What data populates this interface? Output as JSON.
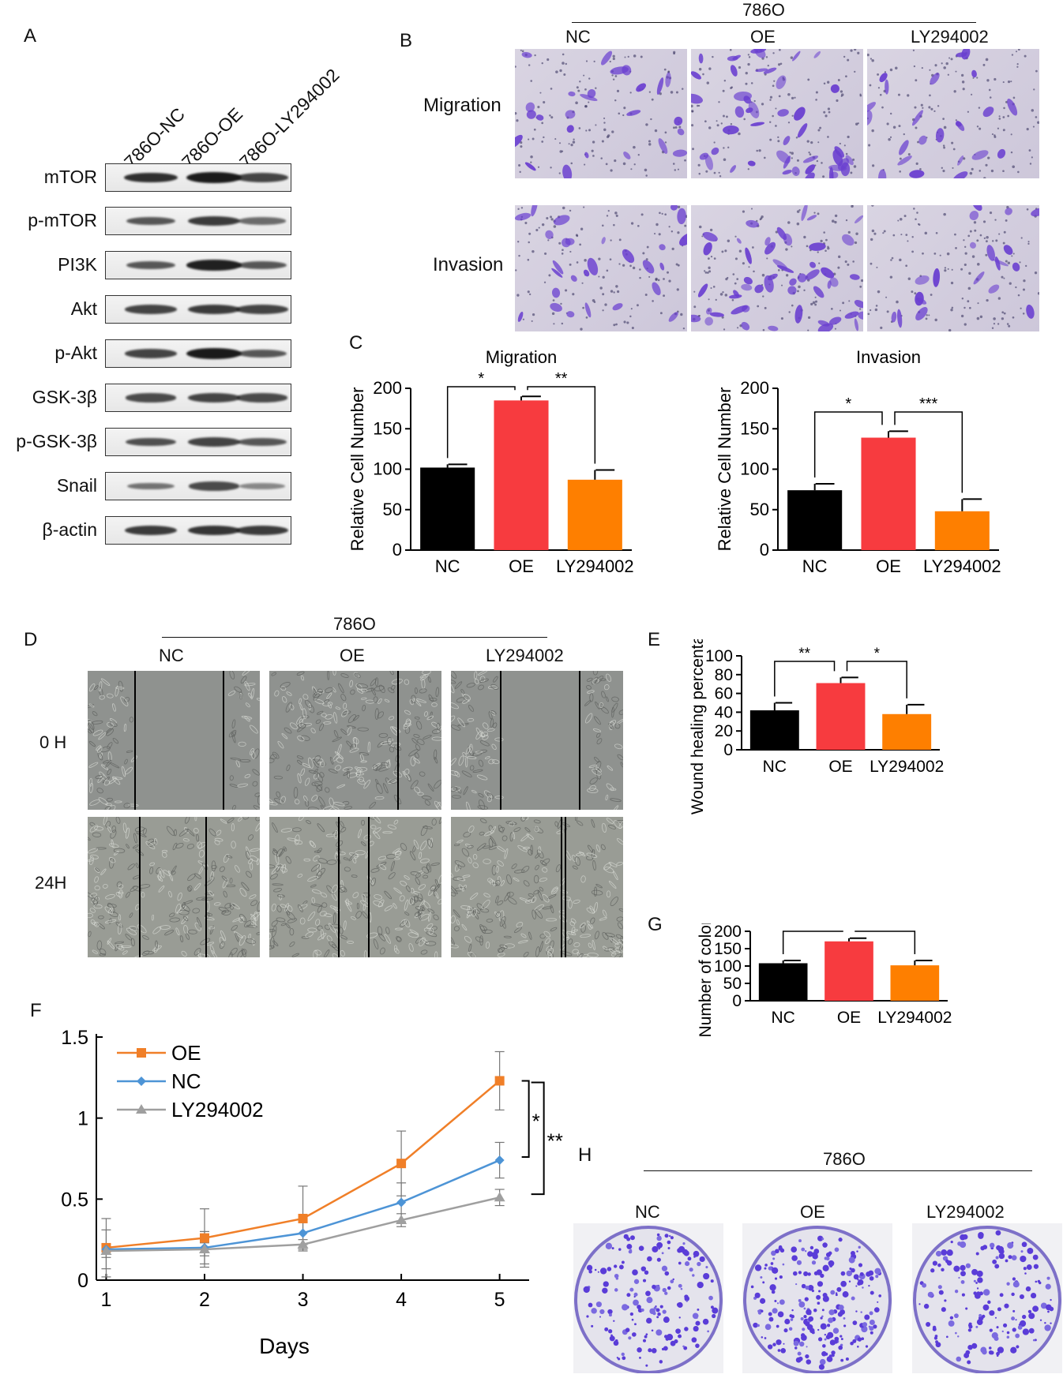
{
  "panel_letters": {
    "A": "A",
    "B": "B",
    "C": "C",
    "D": "D",
    "E": "E",
    "F": "F",
    "G": "G",
    "H": "H"
  },
  "panelA": {
    "lanes": [
      "786O-NC",
      "786O-OE",
      "786O-LY294002"
    ],
    "proteins": [
      {
        "label": "mTOR",
        "intensity": [
          0.85,
          1.0,
          0.7
        ]
      },
      {
        "label": "p-mTOR",
        "intensity": [
          0.55,
          0.75,
          0.4
        ]
      },
      {
        "label": "PI3K",
        "intensity": [
          0.55,
          0.95,
          0.55
        ]
      },
      {
        "label": "Akt",
        "intensity": [
          0.7,
          0.75,
          0.7
        ]
      },
      {
        "label": "p-Akt",
        "intensity": [
          0.7,
          1.0,
          0.55
        ]
      },
      {
        "label": "GSK-3β",
        "intensity": [
          0.65,
          0.7,
          0.65
        ]
      },
      {
        "label": "p-GSK-3β",
        "intensity": [
          0.6,
          0.7,
          0.55
        ]
      },
      {
        "label": "Snail",
        "intensity": [
          0.35,
          0.65,
          0.2
        ]
      },
      {
        "label": "β-actin",
        "intensity": [
          0.75,
          0.8,
          0.75
        ]
      }
    ]
  },
  "panelB": {
    "cell_line": "786O",
    "groups": [
      "NC",
      "OE",
      "LY294002"
    ],
    "rows": [
      "Migration",
      "Invasion"
    ]
  },
  "panelD": {
    "cell_line": "786O",
    "groups": [
      "NC",
      "OE",
      "LY294002"
    ],
    "rows": [
      "0 H",
      "24H"
    ]
  },
  "panelH": {
    "cell_line": "786O",
    "groups": [
      "NC",
      "OE",
      "LY294002"
    ]
  },
  "chart_data": [
    {
      "id": "C-migration",
      "type": "bar",
      "title": "Migration",
      "xlabel": "",
      "ylabel": "Relative Cell Number",
      "categories": [
        "NC",
        "OE",
        "LY294002"
      ],
      "values": [
        102,
        185,
        87
      ],
      "errors": [
        4,
        5,
        12
      ],
      "colors": [
        "#000000",
        "#f73b3f",
        "#fe7f00"
      ],
      "ylim": [
        0,
        200
      ],
      "yticks": [
        0,
        50,
        100,
        150,
        200
      ],
      "significance": [
        {
          "from": 0,
          "to": 1,
          "label": "*"
        },
        {
          "from": 1,
          "to": 2,
          "label": "**"
        }
      ]
    },
    {
      "id": "C-invasion",
      "type": "bar",
      "title": "Invasion",
      "xlabel": "",
      "ylabel": "Relative Cell Number",
      "categories": [
        "NC",
        "OE",
        "LY294002"
      ],
      "values": [
        74,
        139,
        48
      ],
      "errors": [
        8,
        8,
        15
      ],
      "colors": [
        "#000000",
        "#f73b3f",
        "#fe7f00"
      ],
      "ylim": [
        0,
        200
      ],
      "yticks": [
        0,
        50,
        100,
        150,
        200
      ],
      "significance": [
        {
          "from": 0,
          "to": 1,
          "label": "*"
        },
        {
          "from": 1,
          "to": 2,
          "label": "***"
        }
      ]
    },
    {
      "id": "E",
      "type": "bar",
      "title": "",
      "xlabel": "",
      "ylabel": "Wound healing percentage(%)",
      "categories": [
        "NC",
        "OE",
        "LY294002"
      ],
      "values": [
        42,
        71,
        38
      ],
      "errors": [
        8,
        6,
        10
      ],
      "colors": [
        "#000000",
        "#f73b3f",
        "#fe7f00"
      ],
      "ylim": [
        0,
        100
      ],
      "yticks": [
        0,
        20,
        40,
        60,
        80,
        100
      ],
      "significance": [
        {
          "from": 0,
          "to": 1,
          "label": "**"
        },
        {
          "from": 1,
          "to": 2,
          "label": "*"
        }
      ]
    },
    {
      "id": "G",
      "type": "bar",
      "title": "",
      "xlabel": "",
      "ylabel": "Number of colonies",
      "categories": [
        "NC",
        "OE",
        "LY294002"
      ],
      "values": [
        108,
        171,
        102
      ],
      "errors": [
        8,
        9,
        14
      ],
      "colors": [
        "#000000",
        "#f73b3f",
        "#fe7f00"
      ],
      "ylim": [
        0,
        200
      ],
      "yticks": [
        0,
        50,
        100,
        150,
        200
      ],
      "significance": [
        {
          "from": 0,
          "to": 1,
          "label": "***"
        },
        {
          "from": 1,
          "to": 2,
          "label": "**"
        }
      ]
    },
    {
      "id": "F",
      "type": "line",
      "title": "",
      "xlabel": "Days",
      "ylabel": "",
      "x": [
        1,
        2,
        3,
        4,
        5
      ],
      "xticks": [
        "1",
        "2",
        "3",
        "4",
        "5"
      ],
      "yticks": [
        "0",
        "0.5",
        "1",
        "1.5"
      ],
      "ylim": [
        0,
        1.5
      ],
      "legend_position": "top-left",
      "series": [
        {
          "name": "OE",
          "color": "#f07f28",
          "marker": "square",
          "values": [
            0.2,
            0.26,
            0.38,
            0.72,
            1.23
          ],
          "errors": [
            0.18,
            0.18,
            0.2,
            0.2,
            0.18
          ]
        },
        {
          "name": "NC",
          "color": "#4d94d6",
          "marker": "diamond",
          "values": [
            0.19,
            0.2,
            0.29,
            0.48,
            0.74
          ],
          "errors": [
            0.12,
            0.1,
            0.07,
            0.12,
            0.11
          ]
        },
        {
          "name": "LY294002",
          "color": "#9f9f9f",
          "marker": "triangle",
          "values": [
            0.18,
            0.19,
            0.22,
            0.37,
            0.51
          ],
          "errors": [
            0.04,
            0.04,
            0.03,
            0.04,
            0.05
          ]
        }
      ],
      "significance": [
        {
          "label": "*"
        },
        {
          "label": "**"
        }
      ]
    }
  ]
}
